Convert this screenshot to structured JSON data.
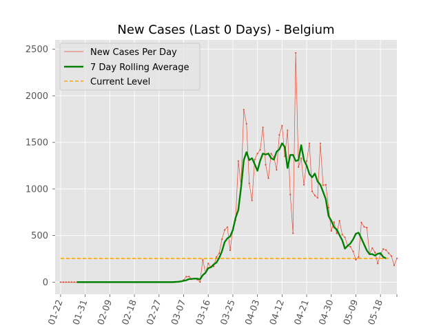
{
  "chart_data": {
    "type": "line",
    "title": "New Cases (Last 0 Days) - Belgium",
    "xlabel": "",
    "ylabel": "",
    "ylim": [
      -130,
      2600
    ],
    "xlim": [
      "2020-01-20",
      "2020-05-24"
    ],
    "x_ticks": [
      "01-22",
      "01-31",
      "02-09",
      "02-18",
      "02-27",
      "03-07",
      "03-16",
      "03-25",
      "04-03",
      "04-12",
      "04-21",
      "04-30",
      "05-09",
      "05-18"
    ],
    "y_ticks": [
      "0",
      "500",
      "1000",
      "1500",
      "2000",
      "2500"
    ],
    "grid": true,
    "legend_placement": "top-left",
    "colors": {
      "background": "#e5e5e5",
      "grid": "#ffffff",
      "daily": "#e24a33",
      "rolling": "#008000",
      "current": "#ffa500"
    },
    "series": [
      {
        "name": "New Cases Per Day",
        "style": "thin line with dot markers",
        "x_start": "2020-01-22",
        "values": [
          0,
          0,
          0,
          0,
          0,
          0,
          0,
          0,
          0,
          0,
          0,
          0,
          0,
          0,
          0,
          0,
          0,
          0,
          0,
          0,
          0,
          0,
          0,
          0,
          0,
          0,
          0,
          0,
          0,
          0,
          0,
          0,
          0,
          0,
          0,
          0,
          0,
          0,
          0,
          0,
          0,
          0,
          1,
          2,
          8,
          23,
          59,
          60,
          31,
          39,
          28,
          2,
          240,
          100,
          200,
          160,
          170,
          270,
          310,
          460,
          560,
          590,
          342,
          560,
          665,
          1300,
          1040,
          1850,
          1700,
          1060,
          877,
          1315,
          1380,
          1420,
          1660,
          1260,
          1115,
          1380,
          1340,
          1205,
          1580,
          1680,
          1350,
          1630,
          940,
          525,
          2460,
          1235,
          1330,
          1045,
          1300,
          1490,
          975,
          930,
          905,
          1490,
          1040,
          1045,
          800,
          550,
          645,
          523,
          659,
          510,
          480,
          390,
          380,
          330,
          240,
          270,
          640,
          595,
          585,
          300,
          365,
          320,
          200,
          300,
          355,
          345,
          310,
          280,
          180,
          255
        ]
      },
      {
        "name": "7 Day Rolling Average",
        "style": "thick line",
        "x_start": "2020-01-28",
        "values": [
          0,
          0,
          0,
          0,
          0,
          0,
          0,
          0,
          0,
          0,
          0,
          0,
          0,
          0,
          0,
          0,
          0,
          0,
          0,
          0,
          0,
          0,
          0,
          0,
          0,
          0,
          0,
          0,
          0,
          0,
          0,
          0,
          0,
          0,
          0,
          0,
          2,
          4,
          8,
          14,
          21,
          33,
          35,
          38,
          37,
          30,
          75,
          100,
          150,
          160,
          190,
          210,
          260,
          330,
          430,
          470,
          490,
          560,
          690,
          775,
          1015,
          1310,
          1395,
          1310,
          1330,
          1265,
          1195,
          1305,
          1380,
          1370,
          1380,
          1330,
          1315,
          1400,
          1425,
          1490,
          1450,
          1225,
          1365,
          1365,
          1300,
          1310,
          1470,
          1310,
          1250,
          1160,
          1125,
          1165,
          1080,
          1045,
          970,
          890,
          710,
          660,
          590,
          565,
          505,
          450,
          360,
          390,
          415,
          460,
          520,
          530,
          470,
          405,
          340,
          300,
          300,
          285,
          305,
          310,
          270,
          255
        ]
      },
      {
        "name": "Current Level",
        "style": "dashed line",
        "value": 255,
        "x_range": [
          "2020-01-22",
          "2020-05-21"
        ]
      }
    ]
  }
}
